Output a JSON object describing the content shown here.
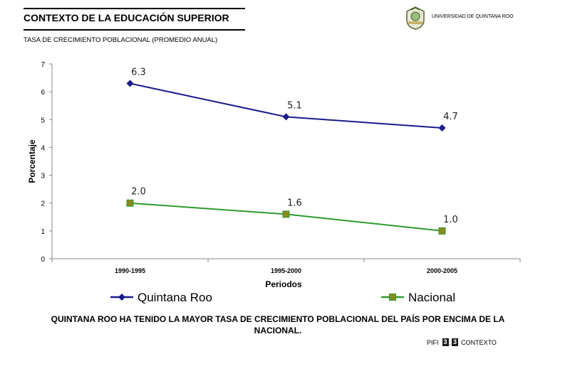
{
  "header": {
    "title": "CONTEXTO DE LA EDUCACIÓN SUPERIOR",
    "subtitle": "TASA DE CRECIMIENTO POBLACIONAL (PROMEDIO ANUAL)",
    "university": "UNIVERSIDAD DE QUINTANA ROO"
  },
  "conclusion": "QUINTANA ROO HA TENIDO LA MAYOR TASA DE CRECIMIENTO POBLACIONAL  DEL PAÍS POR ENCIMA DE LA NACIONAL.",
  "footer": {
    "prefix": "PIFI",
    "badge1": "3",
    "separator": ".",
    "badge2": "3",
    "suffix": "CONTEXTO"
  },
  "chart_data": {
    "type": "line",
    "categories": [
      "1990-1995",
      "1995-2000",
      "2000-2005"
    ],
    "series": [
      {
        "name": "Quintana Roo",
        "values": [
          6.3,
          5.1,
          4.7
        ],
        "labels": [
          "6.3",
          "5.1",
          "4.7"
        ],
        "color": "#1a1a8c",
        "marker": "diamond"
      },
      {
        "name": "Nacional",
        "values": [
          2.0,
          1.6,
          1.0
        ],
        "labels": [
          "2.0",
          "1.6",
          "1.0"
        ],
        "color": "#2e9a2e",
        "marker": "square",
        "marker_fill": "#8a8a1e"
      }
    ],
    "xlabel": "Periodos",
    "ylabel": "Porcentaje",
    "ylim": [
      0,
      7
    ],
    "yticks": [
      "0",
      "1",
      "2",
      "3",
      "4",
      "5",
      "6",
      "7"
    ],
    "grid": false,
    "legend": "bottom"
  }
}
